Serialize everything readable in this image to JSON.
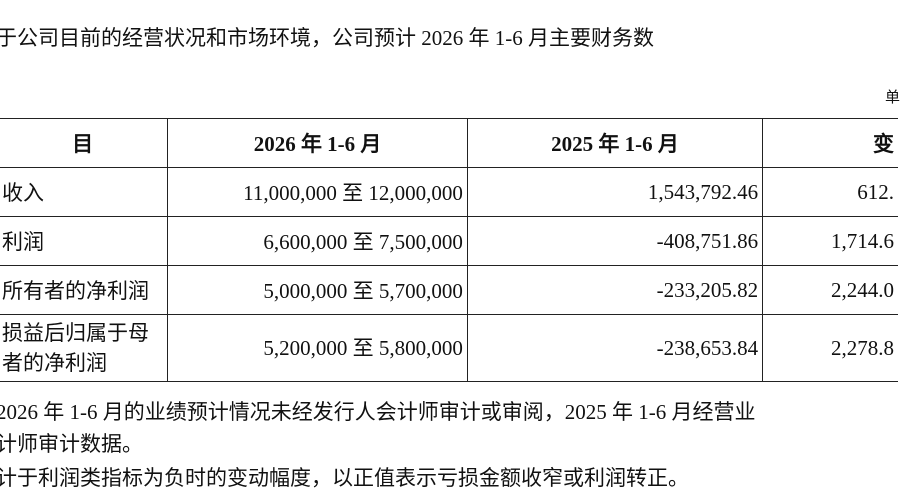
{
  "intro": "于公司目前的经营状况和市场环境，公司预计 2026 年 1-6 月主要财务数",
  "unit": "单",
  "table": {
    "header": [
      "目",
      "2026 年 1-6 月",
      "2025 年 1-6 月",
      "变"
    ],
    "rows": [
      [
        [
          "收入"
        ],
        "11,000,000 至 12,000,000",
        "1,543,792.46",
        "612."
      ],
      [
        [
          "利润"
        ],
        "6,600,000 至 7,500,000",
        "-408,751.86",
        "1,714.6"
      ],
      [
        [
          "所有者的净利润"
        ],
        "5,000,000 至 5,700,000",
        "-233,205.82",
        "2,244.0"
      ],
      [
        [
          "损益后归属于母",
          "者的净利润"
        ],
        "5,200,000 至 5,800,000",
        "-238,653.84",
        "2,278.8"
      ]
    ]
  },
  "notes": [
    "2026 年 1-6 月的业绩预计情况未经发行人会计师审计或审阅，2025 年 1-6 月经营业",
    "计师审计数据。",
    "计于利润类指标为负时的变动幅度，以正值表示亏损金额收窄或利润转正。"
  ]
}
